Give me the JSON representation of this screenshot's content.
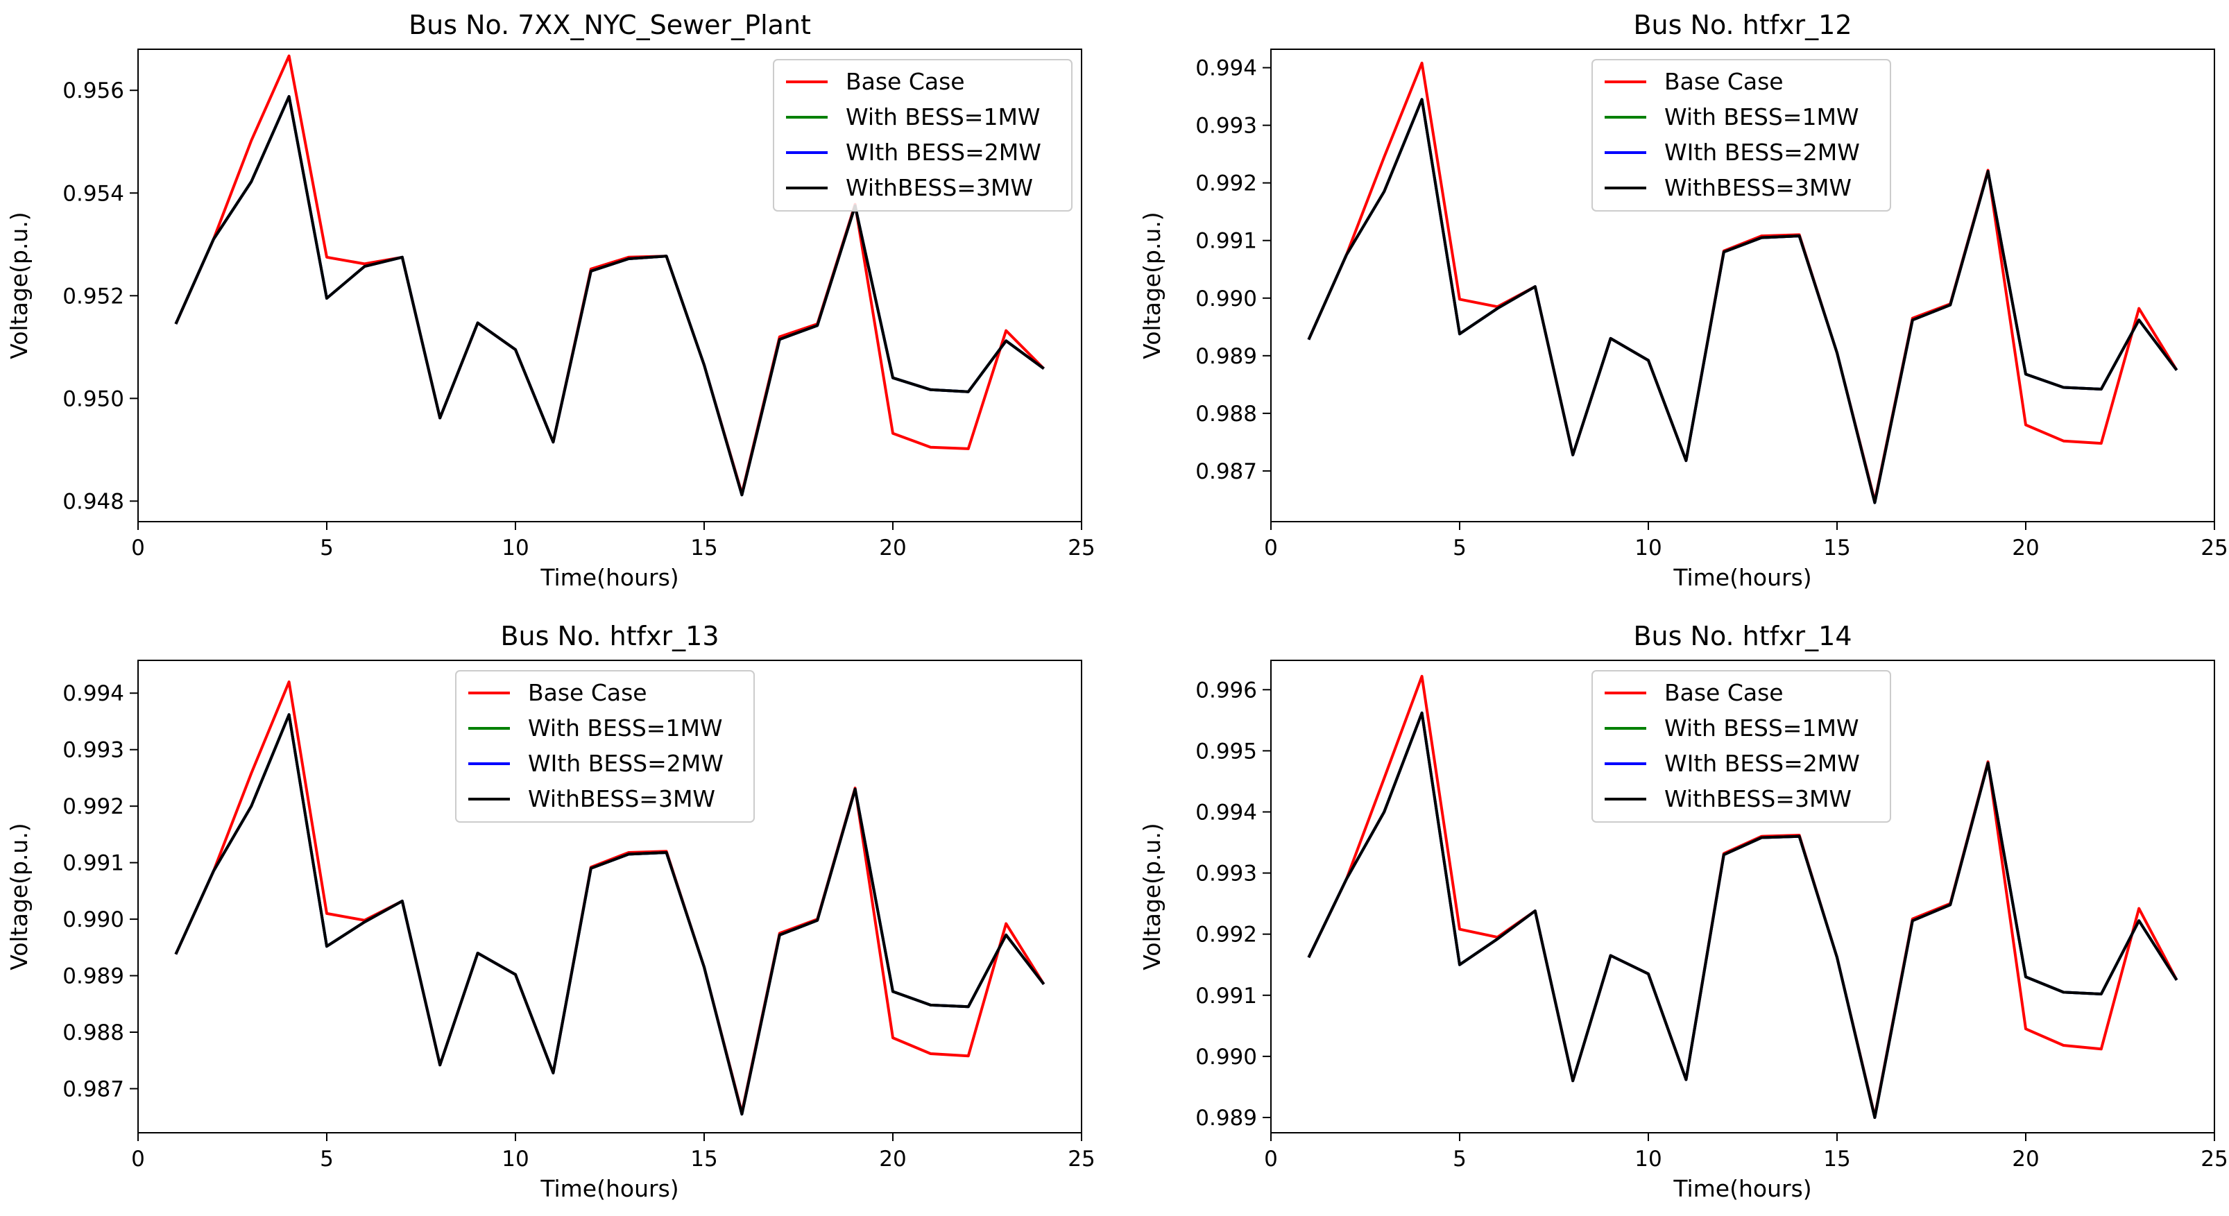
{
  "figure": {
    "layout": "2x2 grid of line charts"
  },
  "series_styles": [
    {
      "name": "Base Case",
      "color": "#ff0000"
    },
    {
      "name": "With BESS=1MW",
      "color": "#008000"
    },
    {
      "name": "WIth BESS=2MW",
      "color": "#0000ff"
    },
    {
      "name": "WithBESS=3MW",
      "color": "#000000"
    }
  ],
  "chart_data": [
    {
      "type": "line",
      "title": "Bus No. 7XX_NYC_Sewer_Plant",
      "xlabel": "Time(hours)",
      "ylabel": "Voltage(p.u.)",
      "xlim": [
        0,
        25
      ],
      "ylim": [
        0.9476,
        0.9568
      ],
      "xticks": [
        0,
        5,
        10,
        15,
        20,
        25
      ],
      "xtick_labels": [
        "0",
        "5",
        "10",
        "15",
        "20",
        "25"
      ],
      "yticks": [
        0.948,
        0.95,
        0.952,
        0.954,
        0.956
      ],
      "ytick_labels": [
        "0.948",
        "0.950",
        "0.952",
        "0.954",
        "0.956"
      ],
      "legend_position": "top-right",
      "x": [
        1,
        2,
        3,
        4,
        5,
        6,
        7,
        8,
        9,
        10,
        11,
        12,
        13,
        14,
        15,
        16,
        17,
        18,
        19,
        20,
        21,
        22,
        23,
        24
      ],
      "series": [
        {
          "name": "Base Case",
          "values": [
            0.95145,
            0.9531,
            0.95502,
            0.95667,
            0.95275,
            0.95262,
            0.95275,
            0.94962,
            0.95147,
            0.95095,
            0.94915,
            0.95252,
            0.95275,
            0.95277,
            0.95065,
            0.94815,
            0.9512,
            0.95145,
            0.95378,
            0.94932,
            0.94905,
            0.94902,
            0.95132,
            0.95058
          ]
        },
        {
          "name": "With BESS=1MW",
          "values": [
            0.95145,
            0.9531,
            0.95422,
            0.95588,
            0.95195,
            0.95257,
            0.95275,
            0.94962,
            0.95147,
            0.95095,
            0.94915,
            0.95248,
            0.95272,
            0.95277,
            0.95065,
            0.94812,
            0.95115,
            0.95142,
            0.95375,
            0.9504,
            0.95017,
            0.95013,
            0.95112,
            0.95058
          ]
        },
        {
          "name": "WIth BESS=2MW",
          "values": [
            0.95145,
            0.9531,
            0.95422,
            0.95588,
            0.95195,
            0.95257,
            0.95275,
            0.94962,
            0.95147,
            0.95095,
            0.94915,
            0.95248,
            0.95272,
            0.95277,
            0.95065,
            0.94812,
            0.95115,
            0.95142,
            0.95375,
            0.9504,
            0.95017,
            0.95013,
            0.95112,
            0.95058
          ]
        },
        {
          "name": "WithBESS=3MW",
          "values": [
            0.95145,
            0.9531,
            0.95422,
            0.95588,
            0.95195,
            0.95257,
            0.95275,
            0.94962,
            0.95147,
            0.95095,
            0.94915,
            0.95248,
            0.95272,
            0.95277,
            0.95065,
            0.94812,
            0.95115,
            0.95142,
            0.95375,
            0.9504,
            0.95017,
            0.95013,
            0.95112,
            0.95058
          ]
        }
      ]
    },
    {
      "type": "line",
      "title": "Bus No. htfxr_12",
      "xlabel": "Time(hours)",
      "ylabel": "Voltage(p.u.)",
      "xlim": [
        0,
        25
      ],
      "ylim": [
        0.98612,
        0.99432
      ],
      "xticks": [
        0,
        5,
        10,
        15,
        20,
        25
      ],
      "xtick_labels": [
        "0",
        "5",
        "10",
        "15",
        "20",
        "25"
      ],
      "yticks": [
        0.987,
        0.988,
        0.989,
        0.99,
        0.991,
        0.992,
        0.993,
        0.994
      ],
      "ytick_labels": [
        "0.987",
        "0.988",
        "0.989",
        "0.990",
        "0.991",
        "0.992",
        "0.993",
        "0.994"
      ],
      "legend_position": "top-center",
      "x": [
        1,
        2,
        3,
        4,
        5,
        6,
        7,
        8,
        9,
        10,
        11,
        12,
        13,
        14,
        15,
        16,
        17,
        18,
        19,
        20,
        21,
        22,
        23,
        24
      ],
      "series": [
        {
          "name": "Base Case",
          "values": [
            0.98928,
            0.99075,
            0.99245,
            0.99408,
            0.98998,
            0.98985,
            0.9902,
            0.98728,
            0.9893,
            0.98892,
            0.98718,
            0.99082,
            0.99108,
            0.9911,
            0.98905,
            0.98648,
            0.98965,
            0.9899,
            0.99222,
            0.9878,
            0.98752,
            0.98748,
            0.98982,
            0.98875
          ]
        },
        {
          "name": "With BESS=1MW",
          "values": [
            0.98928,
            0.99075,
            0.99185,
            0.99345,
            0.98938,
            0.98982,
            0.9902,
            0.98728,
            0.9893,
            0.98892,
            0.98718,
            0.9908,
            0.99105,
            0.99108,
            0.98905,
            0.98645,
            0.98962,
            0.98988,
            0.9922,
            0.98868,
            0.98845,
            0.98842,
            0.98962,
            0.98875
          ]
        },
        {
          "name": "WIth BESS=2MW",
          "values": [
            0.98928,
            0.99075,
            0.99185,
            0.99345,
            0.98938,
            0.98982,
            0.9902,
            0.98728,
            0.9893,
            0.98892,
            0.98718,
            0.9908,
            0.99105,
            0.99108,
            0.98905,
            0.98645,
            0.98962,
            0.98988,
            0.9922,
            0.98868,
            0.98845,
            0.98842,
            0.98962,
            0.98875
          ]
        },
        {
          "name": "WithBESS=3MW",
          "values": [
            0.98928,
            0.99075,
            0.99185,
            0.99345,
            0.98938,
            0.98982,
            0.9902,
            0.98728,
            0.9893,
            0.98892,
            0.98718,
            0.9908,
            0.99105,
            0.99108,
            0.98905,
            0.98645,
            0.98962,
            0.98988,
            0.9922,
            0.98868,
            0.98845,
            0.98842,
            0.98962,
            0.98875
          ]
        }
      ]
    },
    {
      "type": "line",
      "title": "Bus No. htfxr_13",
      "xlabel": "Time(hours)",
      "ylabel": "Voltage(p.u.)",
      "xlim": [
        0,
        25
      ],
      "ylim": [
        0.98622,
        0.99458
      ],
      "xticks": [
        0,
        5,
        10,
        15,
        20,
        25
      ],
      "xtick_labels": [
        "0",
        "5",
        "10",
        "15",
        "20",
        "25"
      ],
      "yticks": [
        0.987,
        0.988,
        0.989,
        0.99,
        0.991,
        0.992,
        0.993,
        0.994
      ],
      "ytick_labels": [
        "0.987",
        "0.988",
        "0.989",
        "0.990",
        "0.991",
        "0.992",
        "0.993",
        "0.994"
      ],
      "legend_position": "top-center",
      "x": [
        1,
        2,
        3,
        4,
        5,
        6,
        7,
        8,
        9,
        10,
        11,
        12,
        13,
        14,
        15,
        16,
        17,
        18,
        19,
        20,
        21,
        22,
        23,
        24
      ],
      "series": [
        {
          "name": "Base Case",
          "values": [
            0.98938,
            0.99085,
            0.99258,
            0.9942,
            0.9901,
            0.98998,
            0.99032,
            0.98742,
            0.9894,
            0.98902,
            0.98728,
            0.99092,
            0.99118,
            0.9912,
            0.98915,
            0.98658,
            0.98975,
            0.99,
            0.99232,
            0.9879,
            0.98762,
            0.98758,
            0.98992,
            0.98885
          ]
        },
        {
          "name": "With BESS=1MW",
          "values": [
            0.98938,
            0.99085,
            0.992,
            0.99362,
            0.98952,
            0.98995,
            0.99032,
            0.98742,
            0.9894,
            0.98902,
            0.98728,
            0.9909,
            0.99115,
            0.99118,
            0.98915,
            0.98655,
            0.98972,
            0.98998,
            0.9923,
            0.98872,
            0.98848,
            0.98845,
            0.98972,
            0.98885
          ]
        },
        {
          "name": "WIth BESS=2MW",
          "values": [
            0.98938,
            0.99085,
            0.992,
            0.99362,
            0.98952,
            0.98995,
            0.99032,
            0.98742,
            0.9894,
            0.98902,
            0.98728,
            0.9909,
            0.99115,
            0.99118,
            0.98915,
            0.98655,
            0.98972,
            0.98998,
            0.9923,
            0.98872,
            0.98848,
            0.98845,
            0.98972,
            0.98885
          ]
        },
        {
          "name": "WithBESS=3MW",
          "values": [
            0.98938,
            0.99085,
            0.992,
            0.99362,
            0.98952,
            0.98995,
            0.99032,
            0.98742,
            0.9894,
            0.98902,
            0.98728,
            0.9909,
            0.99115,
            0.99118,
            0.98915,
            0.98655,
            0.98972,
            0.98998,
            0.9923,
            0.98872,
            0.98848,
            0.98845,
            0.98972,
            0.98885
          ]
        }
      ]
    },
    {
      "type": "line",
      "title": "Bus No. htfxr_14",
      "xlabel": "Time(hours)",
      "ylabel": "Voltage(p.u.)",
      "xlim": [
        0,
        25
      ],
      "ylim": [
        0.98875,
        0.99648
      ],
      "xticks": [
        0,
        5,
        10,
        15,
        20,
        25
      ],
      "xtick_labels": [
        "0",
        "5",
        "10",
        "15",
        "20",
        "25"
      ],
      "yticks": [
        0.989,
        0.99,
        0.991,
        0.992,
        0.993,
        0.994,
        0.995,
        0.996
      ],
      "ytick_labels": [
        "0.989",
        "0.990",
        "0.991",
        "0.992",
        "0.993",
        "0.994",
        "0.995",
        "0.996"
      ],
      "legend_position": "top-center",
      "x": [
        1,
        2,
        3,
        4,
        5,
        6,
        7,
        8,
        9,
        10,
        11,
        12,
        13,
        14,
        15,
        16,
        17,
        18,
        19,
        20,
        21,
        22,
        23,
        24
      ],
      "series": [
        {
          "name": "Base Case",
          "values": [
            0.99162,
            0.9929,
            0.99455,
            0.99622,
            0.99208,
            0.99195,
            0.99238,
            0.9896,
            0.99165,
            0.99135,
            0.98962,
            0.99332,
            0.9936,
            0.99362,
            0.99162,
            0.98902,
            0.99225,
            0.9925,
            0.99482,
            0.99045,
            0.99018,
            0.99012,
            0.99242,
            0.99125
          ]
        },
        {
          "name": "With BESS=1MW",
          "values": [
            0.99162,
            0.9929,
            0.994,
            0.99562,
            0.9915,
            0.99192,
            0.99238,
            0.9896,
            0.99165,
            0.99135,
            0.98962,
            0.9933,
            0.99358,
            0.9936,
            0.99162,
            0.989,
            0.99222,
            0.99248,
            0.9948,
            0.9913,
            0.99105,
            0.99102,
            0.99222,
            0.99125
          ]
        },
        {
          "name": "WIth BESS=2MW",
          "values": [
            0.99162,
            0.9929,
            0.994,
            0.99562,
            0.9915,
            0.99192,
            0.99238,
            0.9896,
            0.99165,
            0.99135,
            0.98962,
            0.9933,
            0.99358,
            0.9936,
            0.99162,
            0.989,
            0.99222,
            0.99248,
            0.9948,
            0.9913,
            0.99105,
            0.99102,
            0.99222,
            0.99125
          ]
        },
        {
          "name": "WithBESS=3MW",
          "values": [
            0.99162,
            0.9929,
            0.994,
            0.99562,
            0.9915,
            0.99192,
            0.99238,
            0.9896,
            0.99165,
            0.99135,
            0.98962,
            0.9933,
            0.99358,
            0.9936,
            0.99162,
            0.989,
            0.99222,
            0.99248,
            0.9948,
            0.9913,
            0.99105,
            0.99102,
            0.99222,
            0.99125
          ]
        }
      ]
    }
  ]
}
